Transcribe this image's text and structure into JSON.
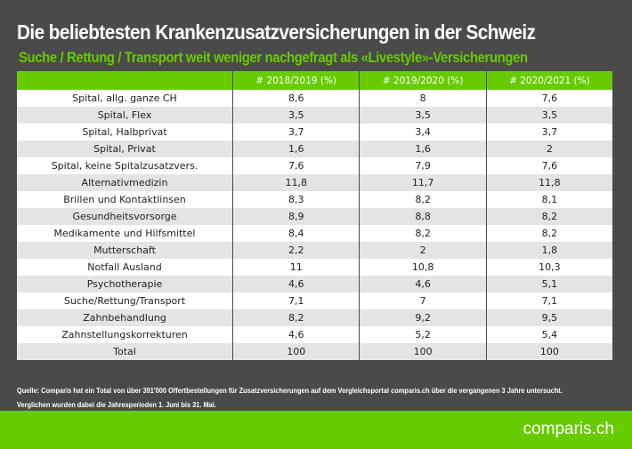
{
  "title": "Die beliebtesten Krankenzusatzversicherungen in der Schweiz",
  "subtitle": "Suche / Rettung / Transport weit weniger nachgefragt als «Livestyle»-Versicherungen",
  "table": {
    "headers": [
      "",
      "# 2018/2019 (%)",
      "# 2019/2020 (%)",
      "# 2020/2021 (%)"
    ],
    "rows": [
      [
        "Spital, allg. ganze CH",
        "8,6",
        "8",
        "7,6"
      ],
      [
        "Spital, Flex",
        "3,5",
        "3,5",
        "3,5"
      ],
      [
        "Spital, Halbprivat",
        "3,7",
        "3,4",
        "3,7"
      ],
      [
        "Spital, Privat",
        "1,6",
        "1,6",
        "2"
      ],
      [
        "Spital, keine Spitalzusatzvers.",
        "7,6",
        "7,9",
        "7,6"
      ],
      [
        "Alternativmedizin",
        "11,8",
        "11,7",
        "11,8"
      ],
      [
        "Brillen und Kontaktlinsen",
        "8,3",
        "8,2",
        "8,1"
      ],
      [
        "Gesundheitsvorsorge",
        "8,9",
        "8,8",
        "8,2"
      ],
      [
        "Medikamente und Hilfsmittel",
        "8,4",
        "8,2",
        "8,2"
      ],
      [
        "Mutterschaft",
        "2,2",
        "2",
        "1,8"
      ],
      [
        "Notfall Ausland",
        "11",
        "10,8",
        "10,3"
      ],
      [
        "Psychotherapie",
        "4,6",
        "4,6",
        "5,1"
      ],
      [
        "Suche/Rettung/Transport",
        "7,1",
        "7",
        "7,1"
      ],
      [
        "Zahnbehandlung",
        "8,2",
        "9,2",
        "9,5"
      ],
      [
        "Zahnstellungskorrekturen",
        "4,6",
        "5,2",
        "5,4"
      ],
      [
        "Total",
        "100",
        "100",
        "100"
      ]
    ]
  },
  "source": [
    "Quelle: Comparis hat ein Total von über 391'000 Offertbestellungen für Zusatzversicherungen auf dem Vergleichsportal comparis.ch über die vergangenen 3 Jahre untersucht.",
    "Verglichen wurden dabei die Jahresperioden 1. Juni bis 31. Mai."
  ],
  "logo": "comparis.ch",
  "colors": {
    "accent": "#66cc00",
    "background": "#4a4a4a"
  }
}
